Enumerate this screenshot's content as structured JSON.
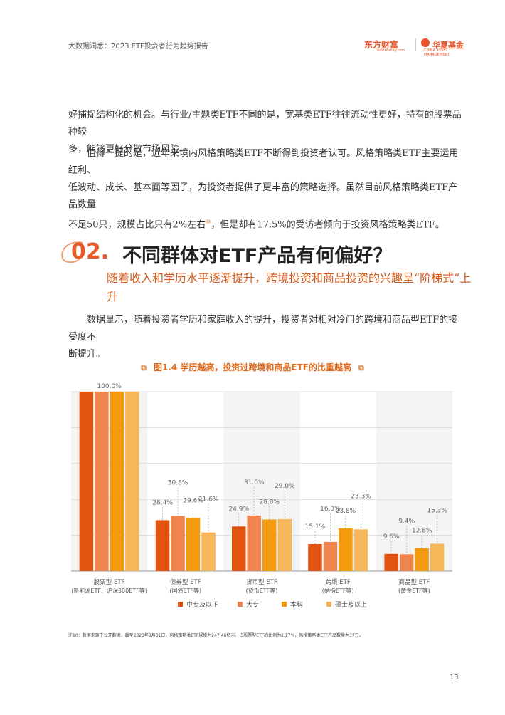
{
  "header": {
    "title": "大数据洞悉：2023 ETF投资者行为趋势报告",
    "logo_left": "东方财富",
    "logo_left_sub": "eastmoney.com",
    "logo_right": "华夏基金",
    "logo_right_sub": "CHINA ASSET MANAGEMENT"
  },
  "body": {
    "p1_line1": "好捕捉结构化的机会。与行业/主题类ETF不同的是，宽基类ETF往往流动性更好，持有的股票品种较",
    "p1_line2": "多，能够更好分散市场风险。",
    "p2_line1": "　　值得一提的是，近年来境内风格策略类ETF不断得到投资者认可。风格策略类ETF主要运用红利、",
    "p2_line2": "低波动、成长、基本面等因子，为投资者提供了更丰富的策略选择。虽然目前风格策略类ETF产品数量",
    "p2_line3": "不足50只，规模占比只有2%左右",
    "p2_line3_ref": "⑩",
    "p2_line3_tail": "，但是却有17.5%的受访者倾向于投资风格策略类ETF。",
    "p3_line1": "　　数据显示，随着投资者学历和家庭收入的提升，投资者对相对冷门的跨境和商品型ETF的接受度不",
    "p3_line2": "断提升。"
  },
  "section": {
    "number": "02.",
    "title": "不同群体对ETF产品有何偏好？",
    "subtitle": "随着收入和学历水平逐渐提升，跨境投资和商品投资的兴趣呈“阶梯式”上升"
  },
  "figure": {
    "title": "图1.4  学历越高，投资过跨境和商品ETF的比重越高"
  },
  "chart_data": {
    "type": "bar",
    "title": "图1.4  学历越高，投资过跨境和商品ETF的比重越高",
    "categories": [
      {
        "name": "股票型 ETF",
        "sub": "(新能源ETF、沪深300ETF等)"
      },
      {
        "name": "债券型 ETF",
        "sub": "(国债ETF等)"
      },
      {
        "name": "货币型 ETF",
        "sub": "(货币ETF等)"
      },
      {
        "name": "跨境 ETF",
        "sub": "(纳指ETF等)"
      },
      {
        "name": "商品型 ETF",
        "sub": "(黄金ETF等)"
      }
    ],
    "series": [
      {
        "name": "中专及以下",
        "color": "#e35310",
        "values": [
          100.0,
          28.4,
          24.9,
          15.1,
          9.6
        ]
      },
      {
        "name": "大专",
        "color": "#f0844f",
        "values": [
          100.0,
          30.8,
          31.0,
          16.3,
          9.4
        ]
      },
      {
        "name": "本科",
        "color": "#f39a0f",
        "values": [
          100.0,
          29.6,
          28.8,
          23.8,
          12.8
        ]
      },
      {
        "name": "硕士及以上",
        "color": "#f6b85a",
        "values": [
          100.0,
          21.6,
          29.0,
          23.3,
          15.3
        ]
      }
    ],
    "labels": [
      [
        "100.0%",
        "",
        "",
        ""
      ],
      [
        "28.4%",
        "30.8%",
        "29.6%",
        "21.6%"
      ],
      [
        "24.9%",
        "31.0%",
        "28.8%",
        "29.0%"
      ],
      [
        "15.1%",
        "16.3%",
        "23.8%",
        "23.3%"
      ],
      [
        "9.6%",
        "9.4%",
        "12.8%",
        "15.3%"
      ]
    ],
    "ylim": [
      0,
      100
    ],
    "grid": true,
    "legend": "bottom"
  },
  "note": "注10：数据来源于公开数据，截至2023年8月31日，风格策略类ETF规模为247.46亿元，占股票型ETF的比例为2.17%，风格策略类ETF产品数量为37只。",
  "page_number": "13"
}
